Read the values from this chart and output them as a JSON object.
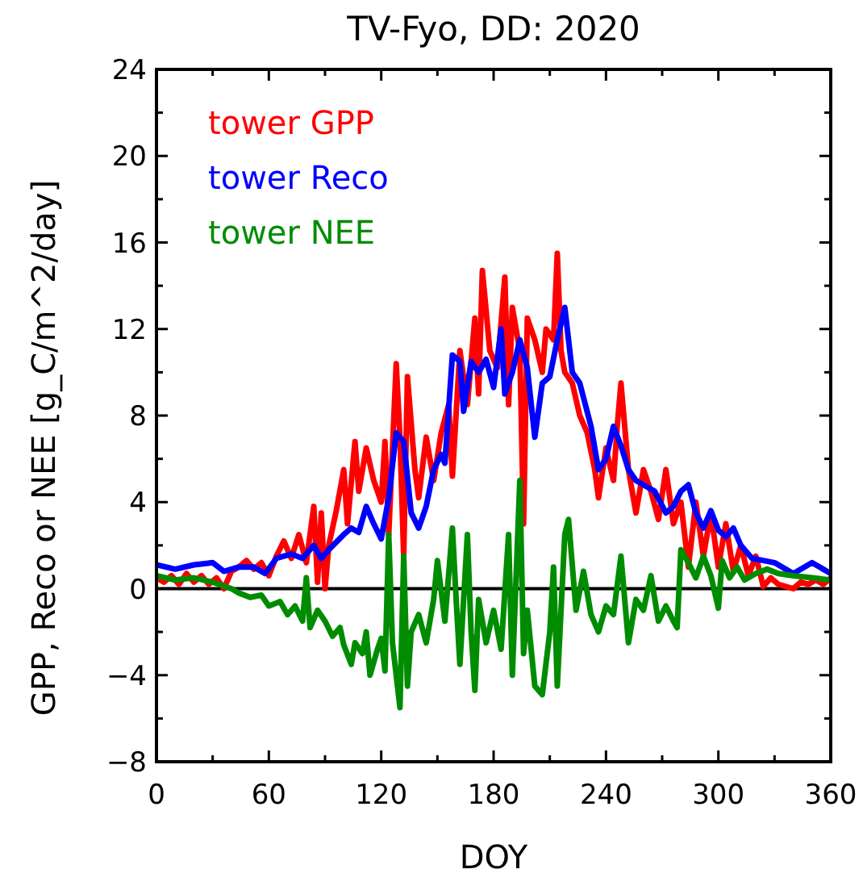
{
  "chart_data": {
    "type": "line",
    "title": "TV-Fyo, DD: 2020",
    "xlabel": "DOY",
    "ylabel": "GPP, Reco or NEE [g_C/m^2/day]",
    "xlim": [
      0,
      360
    ],
    "ylim": [
      -8,
      24
    ],
    "xticks": [
      0,
      {
        "value": 30,
        "label": null
      },
      60,
      {
        "value": 90,
        "label": null
      },
      120,
      {
        "value": 150,
        "label": null
      },
      180,
      {
        "value": 210,
        "label": null
      },
      240,
      {
        "value": 270,
        "label": null
      },
      300,
      {
        "value": 330,
        "label": null
      },
      360
    ],
    "yticks": [
      -8,
      {
        "value": -6,
        "label": null
      },
      -4,
      {
        "value": -2,
        "label": null
      },
      0,
      {
        "value": 2,
        "label": null
      },
      4,
      {
        "value": 6,
        "label": null
      },
      8,
      {
        "value": 10,
        "label": null
      },
      12,
      {
        "value": 14,
        "label": null
      },
      16,
      {
        "value": 18,
        "label": null
      },
      20,
      {
        "value": 22,
        "label": null
      },
      24
    ],
    "grid": false,
    "legend": "top left",
    "line_style": "solid",
    "marker": "none",
    "ref_lines": [
      {
        "axis": "y",
        "value": 0,
        "color": "#000000"
      }
    ],
    "series": [
      {
        "name": "tower GPP",
        "color": "#ff0000",
        "x": [
          0,
          4,
          8,
          12,
          16,
          20,
          24,
          28,
          32,
          36,
          40,
          44,
          48,
          52,
          56,
          60,
          64,
          68,
          72,
          76,
          80,
          84,
          86,
          88,
          90,
          92,
          96,
          100,
          102,
          106,
          108,
          112,
          116,
          120,
          122,
          124,
          128,
          130,
          132,
          134,
          138,
          140,
          144,
          148,
          152,
          156,
          158,
          162,
          166,
          170,
          172,
          174,
          178,
          182,
          186,
          188,
          190,
          194,
          196,
          198,
          202,
          206,
          208,
          212,
          214,
          216,
          218,
          222,
          226,
          230,
          234,
          236,
          240,
          244,
          246,
          248,
          252,
          256,
          260,
          264,
          268,
          272,
          276,
          280,
          284,
          288,
          292,
          296,
          300,
          304,
          308,
          312,
          316,
          320,
          324,
          328,
          332,
          336,
          340,
          344,
          348,
          352,
          356,
          360
        ],
        "values": [
          0.5,
          0.3,
          0.6,
          0.2,
          0.7,
          0.3,
          0.6,
          0.2,
          0.5,
          0.0,
          0.8,
          1.0,
          1.3,
          0.9,
          1.2,
          0.6,
          1.5,
          2.2,
          1.4,
          2.5,
          1.2,
          3.8,
          0.3,
          3.5,
          0.0,
          2.0,
          3.6,
          5.5,
          3.0,
          6.8,
          4.5,
          6.5,
          5.0,
          4.0,
          6.8,
          2.5,
          10.4,
          7.0,
          1.5,
          9.8,
          5.5,
          4.2,
          7.0,
          5.0,
          7.2,
          8.5,
          5.2,
          11.0,
          8.5,
          12.5,
          9.0,
          14.7,
          11.0,
          10.2,
          14.4,
          8.5,
          13.0,
          11.0,
          3.0,
          12.5,
          11.5,
          10.0,
          12.0,
          11.5,
          15.5,
          11.0,
          10.0,
          9.5,
          8.0,
          7.2,
          5.5,
          4.2,
          6.5,
          5.0,
          7.5,
          9.5,
          5.5,
          3.5,
          5.5,
          4.5,
          3.2,
          5.5,
          3.0,
          4.0,
          1.0,
          4.0,
          1.5,
          3.5,
          1.0,
          3.0,
          0.8,
          2.0,
          0.6,
          1.5,
          0.1,
          0.5,
          0.2,
          0.1,
          0.0,
          0.3,
          0.2,
          0.4,
          0.2,
          0.5
        ]
      },
      {
        "name": "tower Reco",
        "color": "#0000ff",
        "x": [
          0,
          10,
          20,
          30,
          36,
          44,
          52,
          58,
          64,
          72,
          78,
          84,
          88,
          92,
          100,
          104,
          108,
          112,
          116,
          120,
          124,
          128,
          132,
          136,
          140,
          144,
          148,
          152,
          154,
          158,
          162,
          164,
          168,
          172,
          176,
          180,
          184,
          186,
          190,
          194,
          198,
          202,
          206,
          210,
          214,
          218,
          222,
          226,
          232,
          236,
          240,
          244,
          248,
          252,
          256,
          262,
          266,
          272,
          276,
          280,
          284,
          288,
          292,
          296,
          300,
          304,
          308,
          312,
          318,
          324,
          330,
          336,
          340,
          346,
          350,
          356,
          360
        ],
        "values": [
          1.1,
          0.9,
          1.1,
          1.2,
          0.8,
          1.0,
          1.0,
          0.7,
          1.4,
          1.6,
          1.4,
          2.0,
          1.4,
          1.8,
          2.5,
          2.8,
          2.6,
          3.8,
          3.0,
          2.3,
          4.2,
          7.2,
          6.8,
          3.5,
          2.8,
          3.8,
          5.5,
          6.2,
          5.8,
          10.8,
          10.5,
          8.2,
          10.5,
          10.0,
          10.6,
          9.3,
          12.0,
          9.0,
          10.0,
          11.5,
          10.2,
          7.0,
          9.5,
          9.8,
          11.5,
          13.0,
          10.0,
          9.5,
          7.5,
          5.5,
          6.0,
          7.5,
          6.6,
          5.5,
          5.0,
          4.7,
          4.5,
          3.5,
          3.8,
          4.5,
          4.8,
          3.5,
          2.8,
          3.6,
          2.7,
          2.4,
          2.8,
          2.0,
          1.4,
          1.3,
          1.2,
          0.9,
          0.7,
          1.0,
          1.2,
          0.9,
          0.7
        ]
      },
      {
        "name": "tower NEE",
        "color": "#008c00",
        "x": [
          0,
          10,
          20,
          30,
          40,
          44,
          50,
          56,
          60,
          66,
          70,
          74,
          78,
          80,
          82,
          86,
          90,
          94,
          98,
          100,
          104,
          106,
          110,
          112,
          114,
          118,
          120,
          122,
          124,
          126,
          128,
          130,
          132,
          134,
          136,
          140,
          144,
          148,
          150,
          154,
          158,
          160,
          162,
          166,
          168,
          170,
          172,
          176,
          180,
          184,
          188,
          190,
          194,
          196,
          198,
          202,
          206,
          210,
          212,
          214,
          218,
          220,
          224,
          228,
          232,
          236,
          240,
          244,
          248,
          252,
          256,
          260,
          264,
          268,
          272,
          276,
          278,
          280,
          284,
          288,
          292,
          296,
          300,
          302,
          306,
          310,
          314,
          320,
          326,
          332,
          340,
          350,
          360
        ],
        "values": [
          0.6,
          0.4,
          0.5,
          0.3,
          0.0,
          -0.2,
          -0.4,
          -0.3,
          -0.8,
          -0.6,
          -1.2,
          -0.8,
          -1.5,
          0.5,
          -1.8,
          -1.0,
          -1.5,
          -2.2,
          -1.8,
          -2.6,
          -3.5,
          -2.5,
          -3.0,
          -2.0,
          -4.0,
          -2.8,
          -2.3,
          -3.8,
          2.5,
          -2.5,
          -4.0,
          -5.5,
          1.5,
          -4.5,
          -2.0,
          -1.2,
          -2.5,
          -0.5,
          1.3,
          -1.5,
          2.8,
          -0.5,
          -3.5,
          2.5,
          -2.0,
          -4.7,
          -0.5,
          -2.5,
          -1.0,
          -2.8,
          2.5,
          -4.0,
          5.0,
          -3.0,
          -1.0,
          -4.5,
          -4.9,
          -2.0,
          1.0,
          -4.5,
          2.5,
          3.2,
          -1.0,
          0.8,
          -1.2,
          -2.0,
          -0.8,
          -1.2,
          1.5,
          -2.5,
          -0.5,
          -1.0,
          0.6,
          -1.5,
          -0.8,
          -1.5,
          -1.8,
          1.8,
          1.2,
          0.5,
          1.5,
          0.6,
          -0.9,
          1.3,
          0.5,
          1.0,
          0.4,
          0.7,
          0.9,
          0.7,
          0.6,
          0.5,
          0.4
        ]
      }
    ]
  }
}
